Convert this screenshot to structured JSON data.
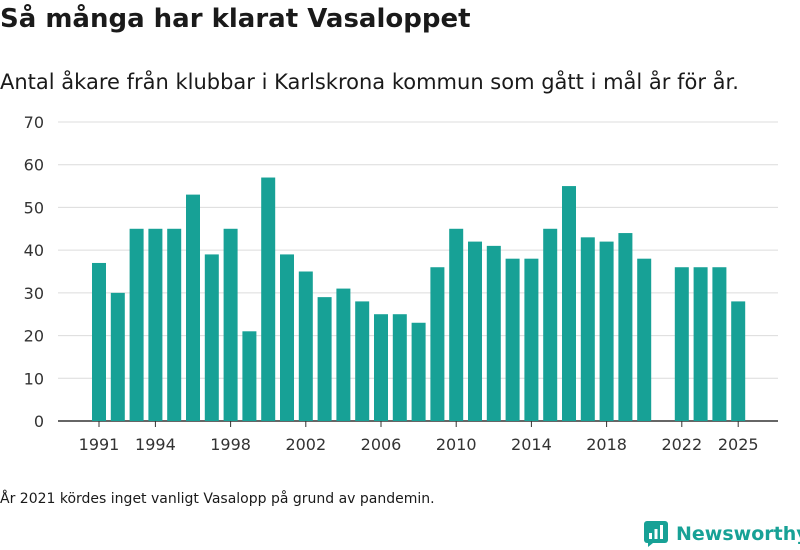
{
  "title": "Så många har klarat Vasaloppet",
  "subtitle": "Antal åkare från klubbar i Karlskrona kommun som gått i mål år för år.",
  "note": "År 2021 kördes inget vanligt Vasalopp på grund av pandemin.",
  "brand": "Newsworthy",
  "colors": {
    "bar": "#17a196",
    "grid": "#dcdcdc",
    "axis": "#333333",
    "brand": "#17a196"
  },
  "chart_data": {
    "type": "bar",
    "x": [
      1991,
      1992,
      1993,
      1994,
      1995,
      1996,
      1997,
      1998,
      1999,
      2000,
      2001,
      2002,
      2003,
      2004,
      2005,
      2006,
      2007,
      2008,
      2009,
      2010,
      2011,
      2012,
      2013,
      2014,
      2015,
      2016,
      2017,
      2018,
      2019,
      2020,
      2021,
      2022,
      2023,
      2024,
      2025
    ],
    "values": [
      37,
      30,
      45,
      45,
      45,
      53,
      39,
      45,
      21,
      57,
      39,
      35,
      29,
      31,
      28,
      25,
      25,
      23,
      36,
      45,
      42,
      41,
      38,
      38,
      45,
      55,
      43,
      42,
      44,
      38,
      null,
      36,
      36,
      36,
      28
    ],
    "xticks": [
      "1991",
      "1994",
      "1998",
      "2002",
      "2006",
      "2010",
      "2014",
      "2018",
      "2022",
      "2025"
    ],
    "yticks": [
      "0",
      "10",
      "20",
      "30",
      "40",
      "50",
      "60",
      "70"
    ],
    "ylim": [
      0,
      70
    ],
    "grid": true,
    "legend": "none"
  }
}
